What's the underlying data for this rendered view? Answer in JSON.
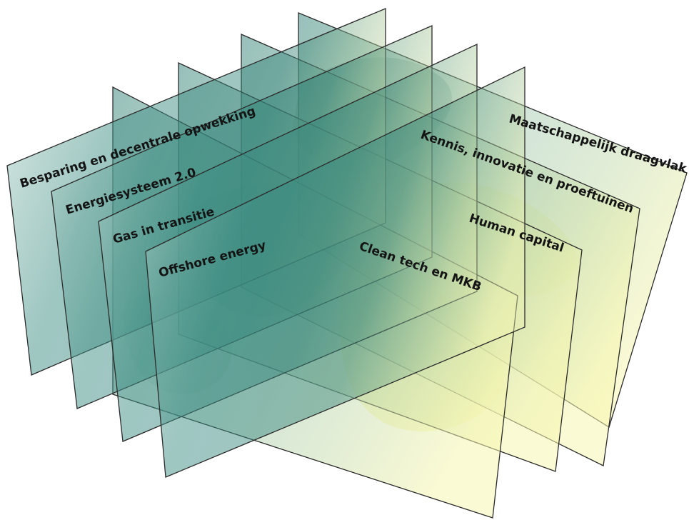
{
  "colors": {
    "background": "#ffffff",
    "plane_teal": "#3f8f85",
    "plane_dark": "#1f5f58",
    "plane_light": "#d7e7df",
    "plane_yellow": "#f6f6b8",
    "plane_outline": "#2b2b2b",
    "label_text": "#141414"
  },
  "left_planes": [
    {
      "label": "Besparing en decentrale opwekking"
    },
    {
      "label": "Energiesysteem 2.0"
    },
    {
      "label": "Gas in transitie"
    },
    {
      "label": "Offshore energy"
    }
  ],
  "right_planes": [
    {
      "label": "Maatschappelijk draagvlak"
    },
    {
      "label": "Kennis, innovatie en proeftuinen"
    },
    {
      "label": "Human capital"
    },
    {
      "label": "Clean tech en MKB"
    }
  ]
}
